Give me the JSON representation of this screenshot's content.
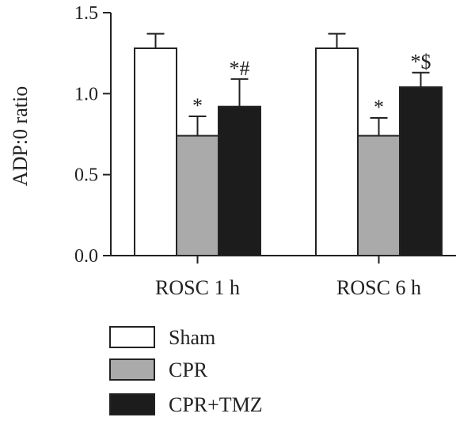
{
  "chart_data": {
    "type": "bar",
    "ylabel": "ADP:0 ratio",
    "ylim": [
      0,
      1.5
    ],
    "yticks": [
      "0.0",
      "0.5",
      "1.0",
      "1.5"
    ],
    "categories": [
      "ROSC 1 h",
      "ROSC 6 h"
    ],
    "series": [
      {
        "name": "Sham",
        "values": [
          1.28,
          1.28
        ],
        "errors": [
          0.09,
          0.09
        ],
        "color": "#ffffff",
        "annotations": [
          "",
          ""
        ]
      },
      {
        "name": "CPR",
        "values": [
          0.74,
          0.74
        ],
        "errors": [
          0.12,
          0.11
        ],
        "color": "#aaaaaa",
        "annotations": [
          "*",
          "*"
        ]
      },
      {
        "name": "CPR+TMZ",
        "values": [
          0.92,
          1.04
        ],
        "errors": [
          0.17,
          0.09
        ],
        "color": "#1c1c1c",
        "annotations": [
          "*#",
          "*$"
        ]
      }
    ],
    "legend_position": "bottom-left",
    "grid": false
  }
}
